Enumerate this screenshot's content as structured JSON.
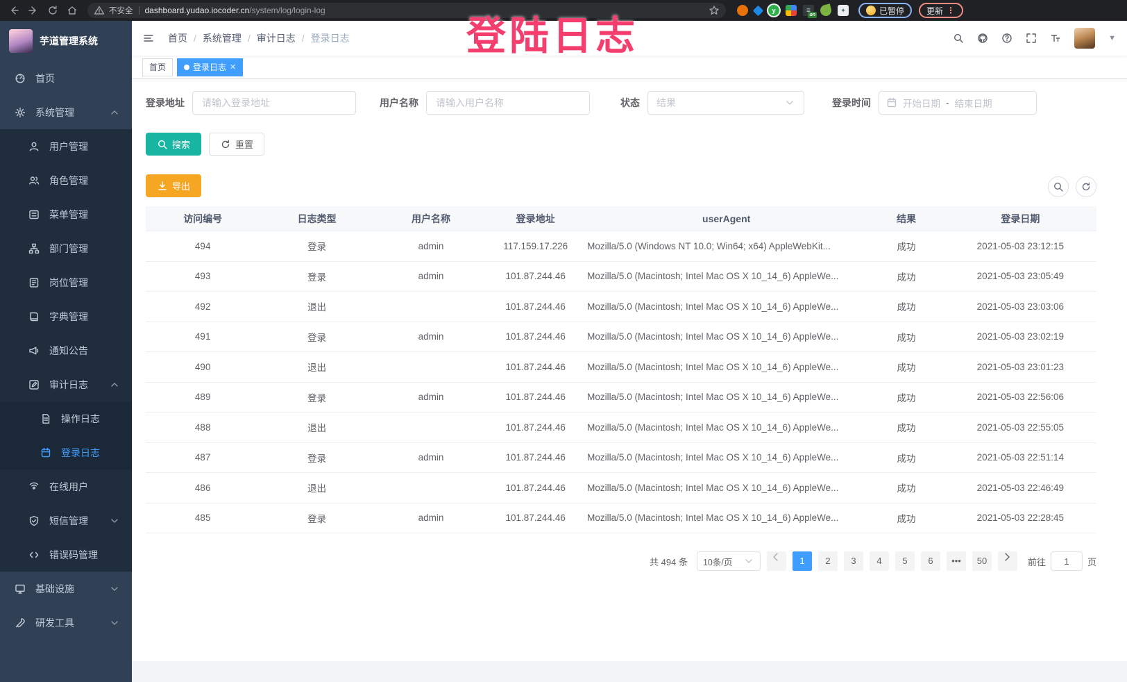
{
  "browser": {
    "security_warning": "不安全",
    "url_host": "dashboard.yudao.iocoder.cn",
    "url_path": "/system/log/login-log",
    "paused_badge": "已暂停",
    "update_button": "更新",
    "menu_dots": "⋮",
    "extensions": [
      {
        "name": "extension-orange-circle",
        "color": "#e8710a",
        "shape": "circle",
        "label": ""
      },
      {
        "name": "extension-blue-diamond",
        "color": "#1e88e5",
        "shape": "diamond",
        "label": ""
      },
      {
        "name": "extension-green-circle",
        "color": "#2eb14a",
        "shape": "circle-ring",
        "label": "y"
      },
      {
        "name": "extension-grid",
        "color": "#4a90d9",
        "shape": "grid",
        "label": ""
      },
      {
        "name": "extension-list",
        "color": "#33393d",
        "shape": "list",
        "label": "≡",
        "badge": "on"
      },
      {
        "name": "extension-leaf",
        "color": "#7cb342",
        "shape": "leaf",
        "label": ""
      },
      {
        "name": "extension-puzzle",
        "color": "#eceff1",
        "shape": "puzzle",
        "label": "✦"
      }
    ]
  },
  "overlay": {
    "text": "登陆日志",
    "color": "#f43f6e"
  },
  "sidebar": {
    "logo_title": "芋道管理系统",
    "menu": [
      {
        "key": "home",
        "label": "首页",
        "icon": "dashboard-icon",
        "level": 1
      },
      {
        "key": "system",
        "label": "系统管理",
        "icon": "gear-icon",
        "level": 1,
        "expanded": true
      },
      {
        "key": "user-mgmt",
        "label": "用户管理",
        "icon": "user-icon",
        "level": 2
      },
      {
        "key": "role-mgmt",
        "label": "角色管理",
        "icon": "role-icon",
        "level": 2
      },
      {
        "key": "menu-mgmt",
        "label": "菜单管理",
        "icon": "list-icon",
        "level": 2
      },
      {
        "key": "dept-mgmt",
        "label": "部门管理",
        "icon": "org-tree-icon",
        "level": 2
      },
      {
        "key": "post-mgmt",
        "label": "岗位管理",
        "icon": "id-card-icon",
        "level": 2
      },
      {
        "key": "dict-mgmt",
        "label": "字典管理",
        "icon": "book-icon",
        "level": 2
      },
      {
        "key": "notice",
        "label": "通知公告",
        "icon": "megaphone-icon",
        "level": 2
      },
      {
        "key": "audit-log",
        "label": "审计日志",
        "icon": "edit-square-icon",
        "level": 2,
        "expanded": true
      },
      {
        "key": "operate-log",
        "label": "操作日志",
        "icon": "document-icon",
        "level": 3
      },
      {
        "key": "login-log",
        "label": "登录日志",
        "icon": "calendar-icon",
        "level": 3,
        "active": true
      },
      {
        "key": "online-users",
        "label": "在线用户",
        "icon": "online-icon",
        "level": 2
      },
      {
        "key": "sms-mgmt",
        "label": "短信管理",
        "icon": "shield-icon",
        "level": 2,
        "collapsed": true
      },
      {
        "key": "errcode-mgmt",
        "label": "错误码管理",
        "icon": "code-icon",
        "level": 2
      },
      {
        "key": "infra",
        "label": "基础设施",
        "icon": "monitor-icon",
        "level": 1,
        "collapsed": true
      },
      {
        "key": "devtools",
        "label": "研发工具",
        "icon": "tool-icon",
        "level": 1,
        "collapsed": true
      }
    ]
  },
  "navbar": {
    "breadcrumb": [
      "首页",
      "系统管理",
      "审计日志",
      "登录日志"
    ]
  },
  "tags": [
    {
      "label": "首页",
      "active": false,
      "closable": false
    },
    {
      "label": "登录日志",
      "active": true,
      "closable": true
    }
  ],
  "filters": {
    "login_address": {
      "label": "登录地址",
      "placeholder": "请输入登录地址"
    },
    "username": {
      "label": "用户名称",
      "placeholder": "请输入用户名称"
    },
    "status": {
      "label": "状态",
      "placeholder": "结果"
    },
    "login_time": {
      "label": "登录时间",
      "start_placeholder": "开始日期",
      "separator": "-",
      "end_placeholder": "结束日期"
    },
    "search_button": "搜索",
    "reset_button": "重置"
  },
  "toolbar": {
    "export_button": "导出"
  },
  "table": {
    "columns": [
      "访问编号",
      "日志类型",
      "用户名称",
      "登录地址",
      "userAgent",
      "结果",
      "登录日期"
    ],
    "rows": [
      {
        "id": "494",
        "type": "登录",
        "username": "admin",
        "address": "117.159.17.226",
        "user_agent": "Mozilla/5.0 (Windows NT 10.0; Win64; x64) AppleWebKit...",
        "result": "成功",
        "date": "2021-05-03 23:12:15"
      },
      {
        "id": "493",
        "type": "登录",
        "username": "admin",
        "address": "101.87.244.46",
        "user_agent": "Mozilla/5.0 (Macintosh; Intel Mac OS X 10_14_6) AppleWe...",
        "result": "成功",
        "date": "2021-05-03 23:05:49"
      },
      {
        "id": "492",
        "type": "退出",
        "username": "",
        "address": "101.87.244.46",
        "user_agent": "Mozilla/5.0 (Macintosh; Intel Mac OS X 10_14_6) AppleWe...",
        "result": "成功",
        "date": "2021-05-03 23:03:06"
      },
      {
        "id": "491",
        "type": "登录",
        "username": "admin",
        "address": "101.87.244.46",
        "user_agent": "Mozilla/5.0 (Macintosh; Intel Mac OS X 10_14_6) AppleWe...",
        "result": "成功",
        "date": "2021-05-03 23:02:19"
      },
      {
        "id": "490",
        "type": "退出",
        "username": "",
        "address": "101.87.244.46",
        "user_agent": "Mozilla/5.0 (Macintosh; Intel Mac OS X 10_14_6) AppleWe...",
        "result": "成功",
        "date": "2021-05-03 23:01:23"
      },
      {
        "id": "489",
        "type": "登录",
        "username": "admin",
        "address": "101.87.244.46",
        "user_agent": "Mozilla/5.0 (Macintosh; Intel Mac OS X 10_14_6) AppleWe...",
        "result": "成功",
        "date": "2021-05-03 22:56:06"
      },
      {
        "id": "488",
        "type": "退出",
        "username": "",
        "address": "101.87.244.46",
        "user_agent": "Mozilla/5.0 (Macintosh; Intel Mac OS X 10_14_6) AppleWe...",
        "result": "成功",
        "date": "2021-05-03 22:55:05"
      },
      {
        "id": "487",
        "type": "登录",
        "username": "admin",
        "address": "101.87.244.46",
        "user_agent": "Mozilla/5.0 (Macintosh; Intel Mac OS X 10_14_6) AppleWe...",
        "result": "成功",
        "date": "2021-05-03 22:51:14"
      },
      {
        "id": "486",
        "type": "退出",
        "username": "",
        "address": "101.87.244.46",
        "user_agent": "Mozilla/5.0 (Macintosh; Intel Mac OS X 10_14_6) AppleWe...",
        "result": "成功",
        "date": "2021-05-03 22:46:49"
      },
      {
        "id": "485",
        "type": "登录",
        "username": "admin",
        "address": "101.87.244.46",
        "user_agent": "Mozilla/5.0 (Macintosh; Intel Mac OS X 10_14_6) AppleWe...",
        "result": "成功",
        "date": "2021-05-03 22:28:45"
      }
    ]
  },
  "pagination": {
    "total_text": "共 494 条",
    "page_size": "10条/页",
    "pages": [
      "1",
      "2",
      "3",
      "4",
      "5",
      "6",
      "•••",
      "50"
    ],
    "active_page": "1",
    "goto_label": "前往",
    "goto_value": "1",
    "goto_suffix": "页"
  },
  "colors": {
    "primary": "#409eff",
    "search_button": "#18b5a3",
    "export_button": "#f5a623",
    "sidebar_bg": "#304156",
    "submenu_bg": "#1f2d3d",
    "overlay_pink": "#f43f6e"
  }
}
